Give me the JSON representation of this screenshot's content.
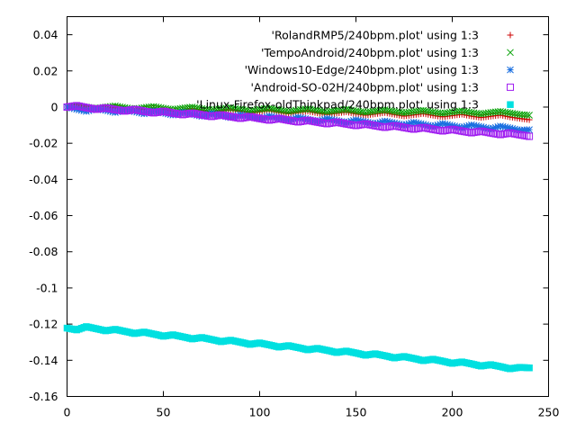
{
  "chart_data": {
    "type": "scatter",
    "title": "",
    "xlabel": "",
    "ylabel": "",
    "xlim": [
      0,
      250
    ],
    "ylim": [
      -0.16,
      0.05
    ],
    "xticks": [
      0,
      50,
      100,
      150,
      200,
      250
    ],
    "xtick_labels": [
      "0",
      "50",
      "100",
      "150",
      "200",
      "250"
    ],
    "yticks": [
      0.04,
      0.02,
      0,
      -0.02,
      -0.04,
      -0.06,
      -0.08,
      -0.1,
      -0.12,
      -0.14,
      -0.16
    ],
    "ytick_labels": [
      "0.04",
      "0.02",
      "0",
      "-0.02",
      "-0.04",
      "-0.06",
      "-0.08",
      "-0.1",
      "-0.12",
      "-0.14",
      "-0.16"
    ],
    "grid": false,
    "legend_position": "top-right",
    "series": [
      {
        "name": "'RolandRMP5/240bpm.plot' using 1:3",
        "color": "#cc0000",
        "marker": "plus",
        "x": [
          0,
          5,
          10,
          15,
          20,
          25,
          30,
          35,
          40,
          45,
          50,
          55,
          60,
          65,
          70,
          75,
          80,
          85,
          90,
          95,
          100,
          105,
          110,
          115,
          120,
          125,
          130,
          135,
          140,
          145,
          150,
          155,
          160,
          165,
          170,
          175,
          180,
          185,
          190,
          195,
          200,
          205,
          210,
          215,
          220,
          225,
          230,
          235,
          240
        ],
        "y": [
          0,
          0.0003,
          -0.0006,
          -0.0015,
          -0.0008,
          -0.0002,
          -0.0012,
          -0.0021,
          -0.0013,
          -0.0007,
          -0.0017,
          -0.0025,
          -0.0018,
          -0.0011,
          -0.0021,
          -0.0029,
          -0.0022,
          -0.0015,
          -0.0025,
          -0.0033,
          -0.0026,
          -0.0019,
          -0.0029,
          -0.0037,
          -0.003,
          -0.0023,
          -0.0033,
          -0.0041,
          -0.0034,
          -0.0027,
          -0.0037,
          -0.0045,
          -0.0038,
          -0.0031,
          -0.0041,
          -0.005,
          -0.0043,
          -0.0036,
          -0.0046,
          -0.0054,
          -0.0047,
          -0.004,
          -0.005,
          -0.0058,
          -0.0051,
          -0.0044,
          -0.0055,
          -0.0063,
          -0.007
        ]
      },
      {
        "name": "'TempoAndroid/240bpm.plot' using 1:3",
        "color": "#00a000",
        "marker": "cross",
        "x": [
          0,
          5,
          10,
          15,
          20,
          25,
          30,
          35,
          40,
          45,
          50,
          55,
          60,
          65,
          70,
          75,
          80,
          85,
          90,
          95,
          100,
          105,
          110,
          115,
          120,
          125,
          130,
          135,
          140,
          145,
          150,
          155,
          160,
          165,
          170,
          175,
          180,
          185,
          190,
          195,
          200,
          205,
          210,
          215,
          220,
          225,
          230,
          235,
          240
        ],
        "y": [
          0,
          0.0008,
          0,
          -0.0008,
          0,
          0.0006,
          -0.0003,
          -0.0011,
          -0.0003,
          0.0003,
          -0.0006,
          -0.0014,
          -0.0006,
          0,
          -0.0009,
          -0.0017,
          -0.0009,
          -0.0003,
          -0.0012,
          -0.002,
          -0.0012,
          -0.0006,
          -0.0015,
          -0.0023,
          -0.0015,
          -0.0009,
          -0.0018,
          -0.0026,
          -0.0018,
          -0.0012,
          -0.0021,
          -0.0029,
          -0.0021,
          -0.0015,
          -0.0024,
          -0.0032,
          -0.0024,
          -0.0018,
          -0.0027,
          -0.0035,
          -0.0027,
          -0.0021,
          -0.003,
          -0.0038,
          -0.003,
          -0.0024,
          -0.0033,
          -0.0041,
          -0.0045
        ]
      },
      {
        "name": "'Windows10-Edge/240bpm.plot' using 1:3",
        "color": "#1a6fe0",
        "marker": "star",
        "x": [
          0,
          5,
          10,
          15,
          20,
          25,
          30,
          35,
          40,
          45,
          50,
          55,
          60,
          65,
          70,
          75,
          80,
          85,
          90,
          95,
          100,
          105,
          110,
          115,
          120,
          125,
          130,
          135,
          140,
          145,
          150,
          155,
          160,
          165,
          170,
          175,
          180,
          185,
          190,
          195,
          200,
          205,
          210,
          215,
          220,
          225,
          230,
          235,
          240
        ],
        "y": [
          0,
          -0.0012,
          -0.0024,
          -0.0008,
          -0.0018,
          -0.003,
          -0.0014,
          -0.0025,
          -0.0037,
          -0.0021,
          -0.0032,
          -0.0044,
          -0.0028,
          -0.0039,
          -0.0051,
          -0.0035,
          -0.0046,
          -0.0058,
          -0.0042,
          -0.0053,
          -0.0065,
          -0.0049,
          -0.006,
          -0.0072,
          -0.0056,
          -0.0067,
          -0.0079,
          -0.0063,
          -0.0074,
          -0.0086,
          -0.007,
          -0.0081,
          -0.0093,
          -0.0077,
          -0.0088,
          -0.01,
          -0.0084,
          -0.0095,
          -0.0107,
          -0.0091,
          -0.0102,
          -0.0114,
          -0.0098,
          -0.0109,
          -0.0121,
          -0.0105,
          -0.0116,
          -0.0128,
          -0.0125
        ]
      },
      {
        "name": "'Android-SO-02H/240bpm.plot' using 1:3",
        "color": "#a020f0",
        "marker": "square-open",
        "x": [
          0,
          5,
          10,
          15,
          20,
          25,
          30,
          35,
          40,
          45,
          50,
          55,
          60,
          65,
          70,
          75,
          80,
          85,
          90,
          95,
          100,
          105,
          110,
          115,
          120,
          125,
          130,
          135,
          140,
          145,
          150,
          155,
          160,
          165,
          170,
          175,
          180,
          185,
          190,
          195,
          200,
          205,
          210,
          215,
          220,
          225,
          230,
          235,
          240
        ],
        "y": [
          0,
          0.0008,
          -0.0003,
          -0.0012,
          -0.0004,
          -0.0014,
          -0.0022,
          -0.0013,
          -0.0023,
          -0.0032,
          -0.0023,
          -0.0033,
          -0.0042,
          -0.0033,
          -0.0043,
          -0.0052,
          -0.0043,
          -0.0053,
          -0.0062,
          -0.0053,
          -0.0063,
          -0.0072,
          -0.0063,
          -0.0073,
          -0.0082,
          -0.0073,
          -0.0083,
          -0.0092,
          -0.0083,
          -0.0093,
          -0.0102,
          -0.0093,
          -0.0103,
          -0.0112,
          -0.0103,
          -0.0113,
          -0.0122,
          -0.0113,
          -0.0123,
          -0.0132,
          -0.0123,
          -0.0133,
          -0.0142,
          -0.0133,
          -0.0143,
          -0.0152,
          -0.0143,
          -0.0153,
          -0.0162
        ]
      },
      {
        "name": "'Linux-Firefox-oldThinkpad/240bpm.plot' using 1:3",
        "color": "#00e0e0",
        "marker": "square-filled",
        "x": [
          0,
          5,
          10,
          15,
          20,
          25,
          30,
          35,
          40,
          45,
          50,
          55,
          60,
          65,
          70,
          75,
          80,
          85,
          90,
          95,
          100,
          105,
          110,
          115,
          120,
          125,
          130,
          135,
          140,
          145,
          150,
          155,
          160,
          165,
          170,
          175,
          180,
          185,
          190,
          195,
          200,
          205,
          210,
          215,
          220,
          225,
          230,
          235,
          240
        ],
        "y": [
          -0.1222,
          -0.1232,
          -0.1214,
          -0.1225,
          -0.1237,
          -0.1229,
          -0.124,
          -0.1252,
          -0.1244,
          -0.1255,
          -0.1267,
          -0.1259,
          -0.127,
          -0.1282,
          -0.1274,
          -0.1285,
          -0.1297,
          -0.1289,
          -0.13,
          -0.1312,
          -0.1304,
          -0.1315,
          -0.1327,
          -0.1319,
          -0.133,
          -0.1342,
          -0.1334,
          -0.1345,
          -0.1357,
          -0.1349,
          -0.136,
          -0.1372,
          -0.1364,
          -0.1375,
          -0.1387,
          -0.1379,
          -0.139,
          -0.1402,
          -0.1394,
          -0.1405,
          -0.1417,
          -0.1409,
          -0.142,
          -0.1432,
          -0.1424,
          -0.1435,
          -0.1447,
          -0.1439,
          -0.1442
        ]
      }
    ]
  }
}
